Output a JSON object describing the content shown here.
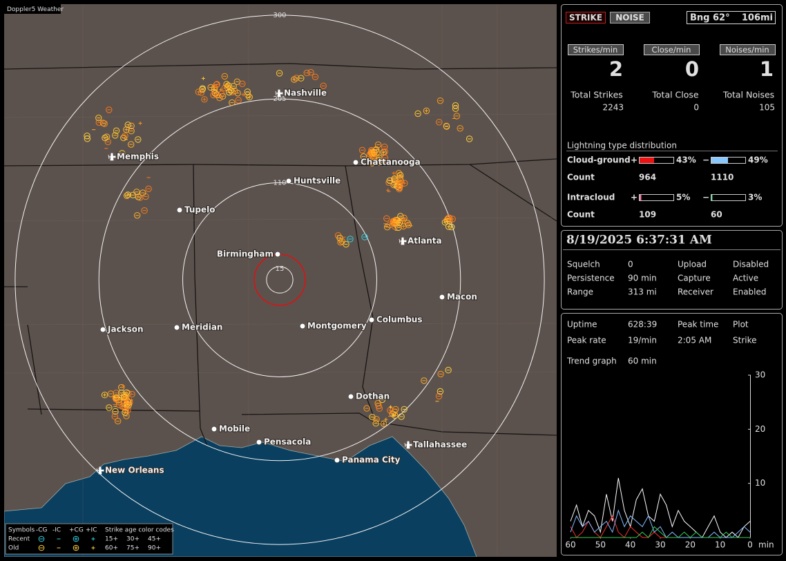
{
  "map": {
    "brand": "Doppler5 Weather",
    "range_rings": [
      15,
      110,
      205,
      300
    ],
    "cities": [
      "Nashville",
      "Memphis",
      "Chattanooga",
      "Huntsville",
      "Tupelo",
      "Birmingham",
      "Atlanta",
      "Macon",
      "Jackson",
      "Meridian",
      "Montgomery",
      "Columbus",
      "Dothan",
      "Mobile",
      "Pensacola",
      "Panama City",
      "Tallahassee",
      "New Orleans"
    ],
    "legend": {
      "symbols_title": "Symbols",
      "types": [
        "-CG",
        "-IC",
        "+CG",
        "+IC"
      ],
      "ages": [
        "Recent",
        "Old"
      ],
      "age_title": "Strike age color codes",
      "age_codes": [
        "15+",
        "30+",
        "45+",
        "60+",
        "75+",
        "90+"
      ]
    }
  },
  "status": {
    "strike": "STRIKE",
    "noise": "NOISE",
    "bearing": "Bng 62°",
    "distance": "106mi"
  },
  "rates": [
    {
      "label": "Strikes/min",
      "value": 2
    },
    {
      "label": "Close/min",
      "value": 0
    },
    {
      "label": "Noises/min",
      "value": 1
    }
  ],
  "totals": [
    {
      "label": "Total Strikes",
      "value": 2243
    },
    {
      "label": "Total Close",
      "value": 0
    },
    {
      "label": "Total Noises",
      "value": 105
    }
  ],
  "distribution": {
    "title": "Lightning type distribution",
    "rows": [
      {
        "name": "Cloud-ground",
        "pos_sign": "+",
        "pos": {
          "value": 43,
          "label": "43%"
        },
        "pos_color": "#ee1111",
        "neg_sign": "−",
        "neg": {
          "value": 49,
          "label": "49%"
        },
        "neg_color": "#88c8ff",
        "count_label": "Count",
        "pos_count": 964,
        "neg_count": 1110
      },
      {
        "name": "Intracloud",
        "pos_sign": "+",
        "pos": {
          "value": 5,
          "label": "5%"
        },
        "pos_color": "#ff77aa",
        "neg_sign": "−",
        "neg": {
          "value": 3,
          "label": "3%"
        },
        "neg_color": "#44dd88",
        "count_label": "Count",
        "pos_count": 109,
        "neg_count": 60
      }
    ]
  },
  "datetime": "8/19/2025 6:37:31 AM",
  "settings": [
    {
      "label": "Squelch",
      "value": "0",
      "color": "#e0e0e0"
    },
    {
      "label": "Persistence",
      "value": "90 min",
      "color": "#e0e0e0"
    },
    {
      "label": "Range",
      "value": "313 mi",
      "color": "#e0e0e0"
    },
    {
      "label": "Upload",
      "value": "Disabled",
      "color": "#aaaaaa"
    },
    {
      "label": "Capture",
      "value": "Active",
      "color": "#22dd22"
    },
    {
      "label": "Receiver",
      "value": "Enabled",
      "color": "#22dd22"
    }
  ],
  "stats": {
    "uptime_label": "Uptime",
    "uptime": "628:39",
    "peak_rate_label": "Peak rate",
    "peak_rate": "19/min",
    "peak_time_label": "Peak time",
    "peak_time": "2:05 AM",
    "plot_label": "Plot",
    "plot": "Strike"
  },
  "trend": {
    "label": "Trend graph",
    "window": "60 min",
    "ylim": [
      0,
      30
    ],
    "yticks": [
      10,
      20,
      30
    ],
    "xlim": [
      60,
      0
    ],
    "xticks": [
      60,
      50,
      40,
      30,
      20,
      10,
      0
    ],
    "x_unit": "min",
    "x": [
      60,
      58,
      56,
      54,
      52,
      50,
      48,
      46,
      44,
      42,
      40,
      38,
      36,
      34,
      32,
      30,
      28,
      26,
      24,
      22,
      20,
      18,
      16,
      14,
      12,
      10,
      8,
      6,
      4,
      2,
      0
    ],
    "series": [
      {
        "color": "#ffffff",
        "values": [
          3,
          6,
          2,
          5,
          4,
          1,
          8,
          3,
          11,
          5,
          2,
          7,
          9,
          4,
          3,
          8,
          6,
          2,
          5,
          3,
          2,
          1,
          0,
          2,
          4,
          1,
          0,
          1,
          0,
          2,
          3
        ]
      },
      {
        "color": "#ff3030",
        "values": [
          2,
          0,
          1,
          3,
          1,
          0,
          2,
          4,
          1,
          0,
          2,
          1,
          0,
          0,
          1,
          0,
          0,
          0,
          0,
          0,
          0,
          0,
          0,
          0,
          0,
          0,
          0,
          0,
          0,
          0,
          0
        ]
      },
      {
        "color": "#88bbff",
        "values": [
          1,
          4,
          2,
          3,
          1,
          2,
          3,
          1,
          5,
          2,
          4,
          3,
          2,
          4,
          1,
          2,
          0,
          1,
          0,
          0,
          0,
          0,
          0,
          0,
          1,
          0,
          0,
          0,
          1,
          2,
          1
        ]
      },
      {
        "color": "#33cc55",
        "values": [
          0,
          0,
          0,
          0,
          0,
          0,
          0,
          0,
          0,
          0,
          0,
          0,
          1,
          0,
          2,
          1,
          0,
          0,
          0,
          1,
          0,
          1,
          0,
          0,
          0,
          0,
          1,
          0,
          0,
          0,
          0
        ]
      }
    ]
  }
}
